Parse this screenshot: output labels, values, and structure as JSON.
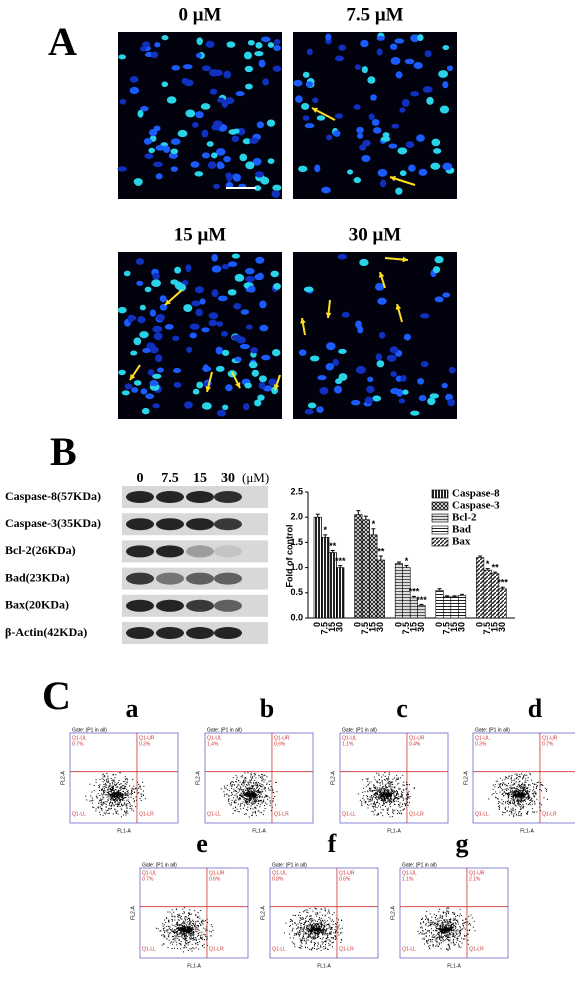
{
  "panel_a": {
    "label": "A",
    "titles": [
      "0 μM",
      "7.5 μM",
      "15 μM",
      "30 μM"
    ]
  },
  "panel_b": {
    "label": "B",
    "lanes": [
      "0",
      "7.5",
      "15",
      "30"
    ],
    "unit": "(μM)",
    "blots": [
      "Caspase-8(57KDa)",
      "Caspase-3(35KDa)",
      "Bcl-2(26KDa)",
      "Bad(23KDa)",
      "Bax(20KDa)",
      "β-Actin(42KDa)"
    ]
  },
  "chart_data": {
    "type": "bar",
    "y_label": "Fold of control",
    "categories": [
      "0",
      "7.5",
      "15",
      "30"
    ],
    "ylim": [
      0,
      2.5
    ],
    "yticks": [
      {
        "value": 0,
        "label": "0.0"
      },
      0.5,
      {
        "value": 1,
        "label": "1.0"
      },
      1.5,
      {
        "value": 2,
        "label": "2.0"
      },
      2.5
    ],
    "series": [
      {
        "name": "Caspase-8",
        "color": "#333333",
        "values": [
          2.0,
          1.6,
          1.3,
          1.0
        ],
        "errors": [
          0.06,
          0.05,
          0.04,
          0.04
        ],
        "significance": [
          null,
          "*",
          "**",
          "***"
        ]
      },
      {
        "name": "Caspase-3",
        "color": "#555555",
        "values": [
          2.05,
          1.95,
          1.65,
          1.15
        ],
        "errors": [
          0.08,
          0.07,
          0.12,
          0.08
        ],
        "significance": [
          null,
          null,
          "*",
          "**"
        ]
      },
      {
        "name": "Bcl-2",
        "color": "#bbbbbb",
        "values": [
          1.08,
          1.0,
          0.4,
          0.25
        ],
        "errors": [
          0.03,
          0.04,
          0.03,
          0.02
        ],
        "significance": [
          null,
          "*",
          "***",
          "***"
        ]
      },
      {
        "name": "Bad",
        "color": "#ffffff",
        "values": [
          0.55,
          0.42,
          0.42,
          0.45
        ],
        "errors": [
          0.03,
          0.02,
          0.02,
          0.02
        ],
        "significance": [
          null,
          null,
          null,
          null
        ]
      },
      {
        "name": "Bax",
        "color": "#777777",
        "values": [
          1.2,
          0.95,
          0.88,
          0.58
        ],
        "errors": [
          0.03,
          0.03,
          0.03,
          0.03
        ],
        "significance": [
          null,
          "*",
          "**",
          "***"
        ]
      }
    ]
  },
  "panel_c": {
    "label": "C",
    "gate": "Gate: (P1 in all)",
    "quadrants": [
      "Q1-UL",
      "Q1-UR",
      "Q1-LL",
      "Q1-LR"
    ],
    "x_label": "FL1-A",
    "y_label": "FL2-A",
    "plots": [
      {
        "label": "a",
        "ul": "0.7%",
        "ur": "0.3%"
      },
      {
        "label": "b",
        "ul": "1.4%",
        "ur": "0.6%"
      },
      {
        "label": "c",
        "ul": "1.1%",
        "ur": "0.4%"
      },
      {
        "label": "d",
        "ul": "0.3%",
        "ur": "0.7%"
      },
      {
        "label": "e",
        "ul": "0.7%",
        "ur": "0.6%"
      },
      {
        "label": "f",
        "ul": "0.8%",
        "ur": "0.6%"
      },
      {
        "label": "g",
        "ul": "1.1%",
        "ur": "2.1%"
      }
    ]
  }
}
